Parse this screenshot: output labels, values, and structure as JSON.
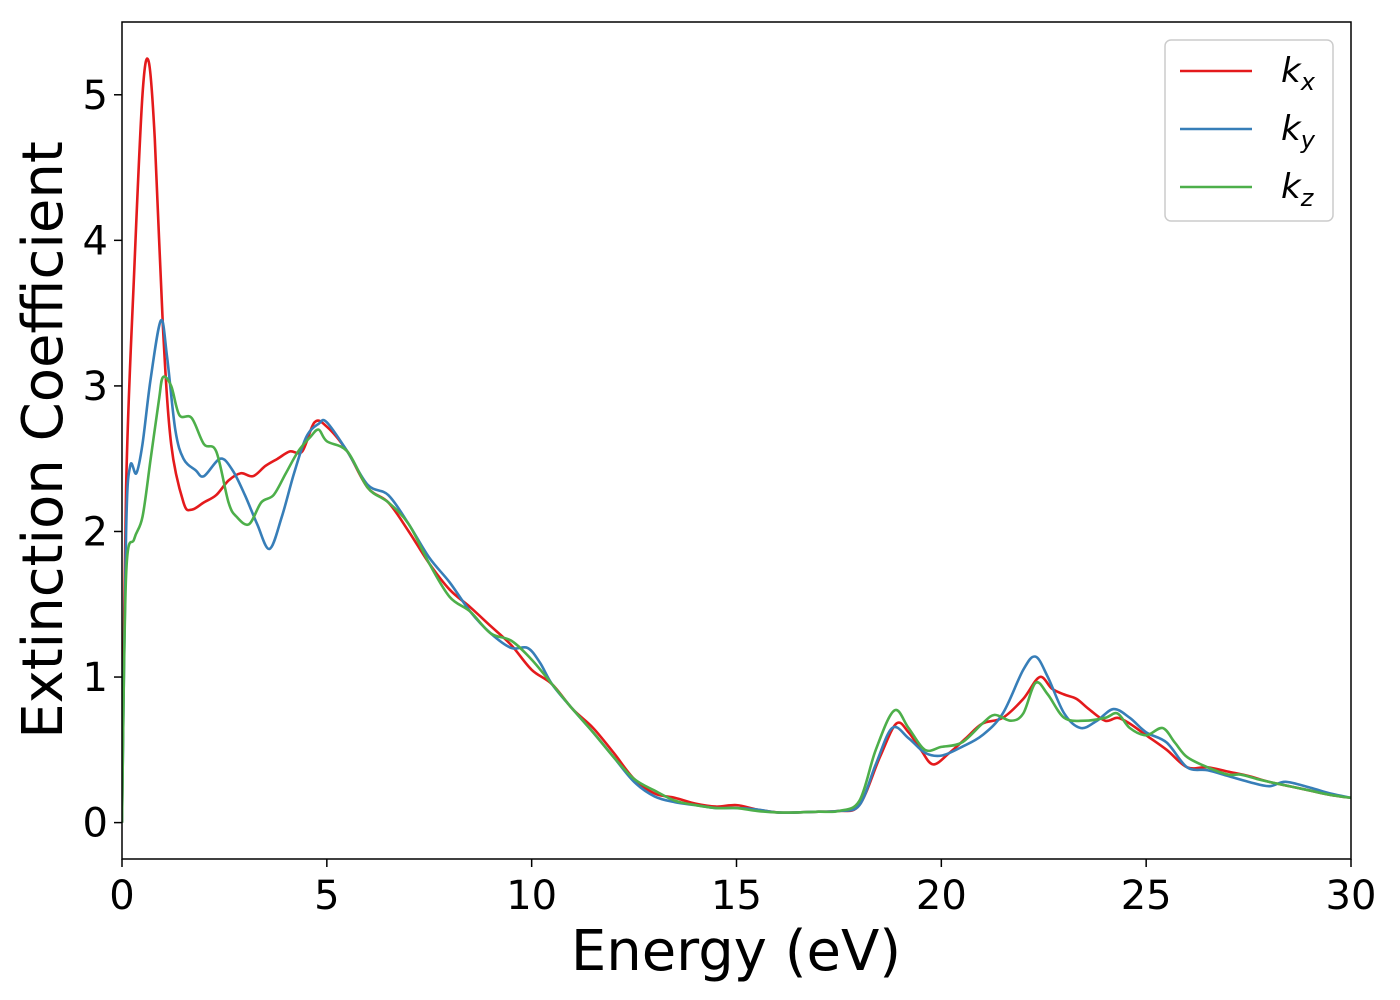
{
  "chart_data": {
    "type": "line",
    "xlabel": "Energy (eV)",
    "ylabel": "Extinction Coefficient",
    "xlim": [
      0,
      30
    ],
    "ylim": [
      -0.25,
      5.5
    ],
    "xticks": [
      0,
      5,
      10,
      15,
      20,
      25,
      30
    ],
    "yticks": [
      0,
      1,
      2,
      3,
      4,
      5
    ],
    "xtick_labels": [
      "0",
      "5",
      "10",
      "15",
      "20",
      "25",
      "30"
    ],
    "ytick_labels": [
      "0",
      "1",
      "2",
      "3",
      "4",
      "5"
    ],
    "grid": false,
    "legend_position": "top-right",
    "series": [
      {
        "name": "k_x",
        "label_main": "k",
        "label_sub": "x",
        "color": "#e41a1c",
        "x": [
          0,
          0.1,
          0.3,
          0.5,
          0.65,
          0.8,
          1.0,
          1.2,
          1.5,
          1.7,
          2.0,
          2.3,
          2.6,
          2.9,
          3.2,
          3.5,
          3.8,
          4.1,
          4.4,
          4.7,
          5.0,
          5.5,
          6.0,
          6.5,
          7.0,
          7.5,
          8.0,
          8.5,
          9.0,
          9.5,
          10.0,
          10.5,
          11.0,
          11.5,
          12.0,
          12.5,
          13.0,
          13.5,
          14.0,
          14.5,
          15.0,
          15.5,
          16.0,
          16.5,
          17.0,
          17.5,
          18.0,
          18.5,
          18.9,
          19.2,
          19.5,
          19.8,
          20.2,
          20.6,
          21.0,
          21.5,
          22.0,
          22.4,
          22.7,
          23.0,
          23.3,
          23.6,
          24.0,
          24.3,
          24.6,
          25.0,
          25.5,
          26.0,
          26.5,
          27.0,
          27.5,
          28.0,
          28.5,
          29.0,
          29.5,
          30.0
        ],
        "y": [
          0.0,
          2.3,
          3.8,
          5.0,
          5.23,
          4.7,
          3.4,
          2.6,
          2.2,
          2.15,
          2.2,
          2.25,
          2.35,
          2.4,
          2.38,
          2.45,
          2.5,
          2.55,
          2.55,
          2.75,
          2.72,
          2.55,
          2.3,
          2.2,
          2.0,
          1.78,
          1.6,
          1.48,
          1.35,
          1.22,
          1.05,
          0.95,
          0.78,
          0.65,
          0.48,
          0.3,
          0.2,
          0.17,
          0.13,
          0.11,
          0.12,
          0.09,
          0.07,
          0.07,
          0.075,
          0.08,
          0.12,
          0.45,
          0.68,
          0.62,
          0.5,
          0.4,
          0.48,
          0.58,
          0.68,
          0.72,
          0.85,
          1.0,
          0.92,
          0.88,
          0.85,
          0.78,
          0.7,
          0.72,
          0.68,
          0.6,
          0.5,
          0.38,
          0.38,
          0.35,
          0.32,
          0.28,
          0.25,
          0.22,
          0.19,
          0.17
        ]
      },
      {
        "name": "k_y",
        "label_main": "k",
        "label_sub": "y",
        "color": "#377eb8",
        "x": [
          0,
          0.1,
          0.2,
          0.35,
          0.5,
          0.7,
          0.95,
          1.1,
          1.3,
          1.5,
          1.8,
          2.0,
          2.4,
          2.7,
          3.0,
          3.3,
          3.6,
          3.9,
          4.2,
          4.5,
          4.8,
          5.0,
          5.5,
          6.0,
          6.5,
          7.0,
          7.5,
          8.0,
          8.5,
          9.0,
          9.5,
          9.9,
          10.2,
          10.5,
          11.0,
          11.5,
          12.0,
          12.5,
          13.0,
          13.5,
          14.0,
          14.5,
          15.0,
          15.5,
          16.0,
          16.5,
          17.0,
          17.5,
          18.0,
          18.4,
          18.8,
          19.2,
          19.6,
          20.0,
          20.5,
          21.0,
          21.5,
          22.0,
          22.3,
          22.6,
          23.0,
          23.4,
          23.8,
          24.2,
          24.6,
          25.0,
          25.5,
          26.0,
          26.5,
          27.0,
          27.5,
          28.0,
          28.4,
          29.0,
          29.5,
          30.0
        ],
        "y": [
          0.0,
          2.0,
          2.45,
          2.4,
          2.6,
          3.05,
          3.45,
          3.2,
          2.7,
          2.5,
          2.42,
          2.38,
          2.5,
          2.42,
          2.25,
          2.05,
          1.88,
          2.1,
          2.4,
          2.65,
          2.74,
          2.75,
          2.55,
          2.32,
          2.25,
          2.05,
          1.82,
          1.65,
          1.45,
          1.3,
          1.2,
          1.2,
          1.1,
          0.95,
          0.78,
          0.62,
          0.45,
          0.28,
          0.18,
          0.14,
          0.12,
          0.1,
          0.1,
          0.09,
          0.07,
          0.07,
          0.075,
          0.08,
          0.12,
          0.4,
          0.65,
          0.58,
          0.48,
          0.46,
          0.52,
          0.6,
          0.75,
          1.05,
          1.14,
          1.0,
          0.75,
          0.65,
          0.7,
          0.78,
          0.72,
          0.62,
          0.55,
          0.38,
          0.36,
          0.32,
          0.28,
          0.25,
          0.28,
          0.24,
          0.2,
          0.17
        ]
      },
      {
        "name": "k_z",
        "label_main": "k",
        "label_sub": "z",
        "color": "#4daf4a",
        "x": [
          0,
          0.1,
          0.3,
          0.5,
          0.7,
          0.9,
          1.0,
          1.2,
          1.4,
          1.7,
          2.0,
          2.3,
          2.6,
          2.8,
          3.1,
          3.4,
          3.7,
          4.0,
          4.3,
          4.6,
          4.8,
          5.0,
          5.5,
          6.0,
          6.5,
          7.0,
          7.5,
          8.0,
          8.5,
          9.0,
          9.5,
          10.0,
          10.5,
          11.0,
          11.5,
          12.0,
          12.5,
          13.0,
          13.5,
          14.0,
          14.5,
          15.0,
          15.5,
          16.0,
          16.5,
          17.0,
          17.5,
          18.0,
          18.4,
          18.85,
          19.2,
          19.6,
          20.0,
          20.5,
          21.0,
          21.3,
          21.7,
          22.0,
          22.3,
          22.6,
          23.0,
          23.5,
          24.0,
          24.3,
          24.6,
          25.0,
          25.4,
          25.7,
          26.0,
          26.5,
          27.0,
          27.3,
          27.7,
          28.0,
          28.5,
          29.0,
          29.5,
          30.0
        ],
        "y": [
          0.0,
          1.7,
          1.95,
          2.1,
          2.5,
          2.9,
          3.06,
          3.0,
          2.8,
          2.78,
          2.6,
          2.55,
          2.2,
          2.1,
          2.05,
          2.2,
          2.25,
          2.4,
          2.55,
          2.65,
          2.7,
          2.62,
          2.55,
          2.3,
          2.2,
          2.05,
          1.78,
          1.55,
          1.45,
          1.3,
          1.25,
          1.12,
          0.95,
          0.78,
          0.62,
          0.45,
          0.3,
          0.22,
          0.15,
          0.12,
          0.1,
          0.1,
          0.08,
          0.07,
          0.07,
          0.075,
          0.08,
          0.15,
          0.5,
          0.77,
          0.65,
          0.5,
          0.52,
          0.55,
          0.68,
          0.74,
          0.7,
          0.75,
          0.96,
          0.88,
          0.72,
          0.7,
          0.72,
          0.75,
          0.65,
          0.6,
          0.65,
          0.55,
          0.45,
          0.38,
          0.33,
          0.33,
          0.3,
          0.28,
          0.25,
          0.22,
          0.19,
          0.17
        ]
      }
    ]
  }
}
